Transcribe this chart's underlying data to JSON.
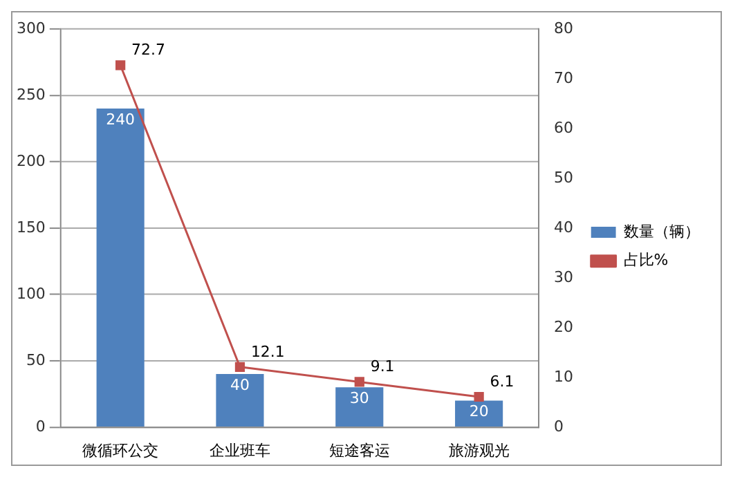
{
  "chart_data": {
    "type": "bar",
    "categories": [
      "微循环公交",
      "企业班车",
      "短途客运",
      "旅游观光"
    ],
    "series": [
      {
        "name": "数量（辆）",
        "color": "#4f81bd",
        "values": [
          240,
          40,
          30,
          20
        ]
      },
      {
        "name": "占比%",
        "type": "line",
        "axis": "y2",
        "color": "#c0504d",
        "marker": "square",
        "values": [
          72.7,
          12.1,
          9.1,
          6.1
        ]
      }
    ],
    "ylim": [
      0,
      300
    ],
    "yticks": [
      0,
      50,
      100,
      150,
      200,
      250,
      300
    ],
    "y2lim": [
      0,
      80
    ],
    "y2ticks": [
      0,
      10,
      20,
      30,
      40,
      50,
      60,
      70,
      80
    ],
    "grid": "y",
    "legend": "right",
    "data_labels": true
  }
}
